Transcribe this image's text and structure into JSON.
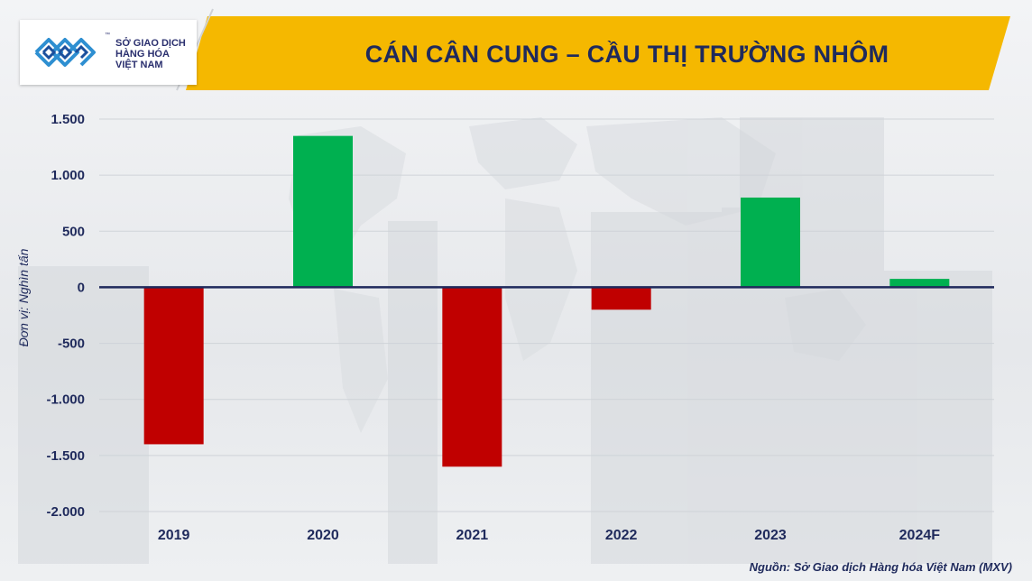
{
  "logo": {
    "line1": "SỞ GIAO DỊCH",
    "line2": "HÀNG HÓA",
    "line3": "VIỆT NAM",
    "tm": "™"
  },
  "source": "Nguồn: Sở Giao dịch Hàng hóa Việt Nam (MXV)",
  "colors": {
    "header": "#f5b800",
    "positive": "#00b050",
    "negative": "#c00000",
    "text": "#1f2a5c"
  },
  "chart_data": {
    "type": "bar",
    "title": "CÁN CÂN CUNG – CẦU THỊ TRƯỜNG NHÔM",
    "ylabel": "Đơn vị: Nghìn tấn",
    "xlabel": "",
    "categories": [
      "2019",
      "2020",
      "2021",
      "2022",
      "2023",
      "2024F"
    ],
    "values": [
      -1400,
      1350,
      -1600,
      -200,
      800,
      75
    ],
    "ylim": [
      -2000,
      1500
    ],
    "yticks": [
      1500,
      1000,
      500,
      0,
      -500,
      -1000,
      -1500,
      -2000
    ],
    "ytick_labels": [
      "1.500",
      "1.000",
      "500",
      "0",
      "-500",
      "-1.000",
      "-1.500",
      "-2.000"
    ],
    "grid": true,
    "legend": "none"
  }
}
